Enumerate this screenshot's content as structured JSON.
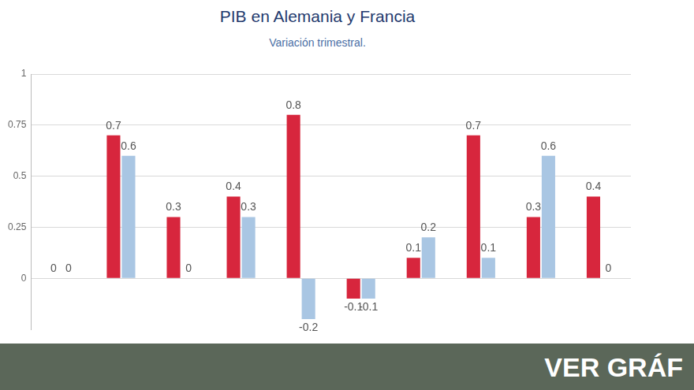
{
  "chart_data": {
    "type": "bar",
    "title": "PIB en Alemania y Francia",
    "subtitle": "Variación trimestral.",
    "annotation": "VER GRÁF",
    "categories": [
      null,
      null,
      null,
      null,
      null,
      null,
      null,
      null,
      null,
      null
    ],
    "series": [
      {
        "color": "#d7263d",
        "values": [
          0,
          0.7,
          0.3,
          0.4,
          0.8,
          -0.1,
          0.1,
          0.7,
          0.3,
          0.4
        ]
      },
      {
        "color": "#a9c6e3",
        "values": [
          0,
          0.6,
          0,
          0.3,
          -0.2,
          -0.1,
          0.2,
          0.1,
          0.6,
          0
        ]
      }
    ],
    "ylim": [
      -0.25,
      1
    ],
    "yticks": [
      0,
      0.25,
      0.5,
      0.75,
      1
    ],
    "grid": true,
    "data_labels": true,
    "tick_labels": "y"
  }
}
